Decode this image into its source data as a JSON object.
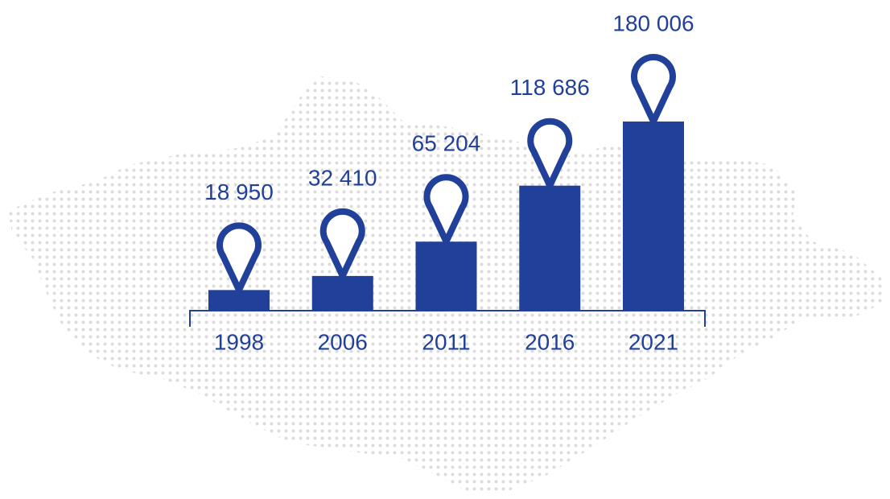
{
  "chart_data": {
    "type": "bar",
    "categories": [
      "1998",
      "2006",
      "2011",
      "2016",
      "2021"
    ],
    "values": [
      18950,
      32410,
      65204,
      118686,
      180006
    ],
    "value_labels": [
      "18 950",
      "32 410",
      "65 204",
      "118 686",
      "180 006"
    ],
    "color": "#21409a"
  }
}
